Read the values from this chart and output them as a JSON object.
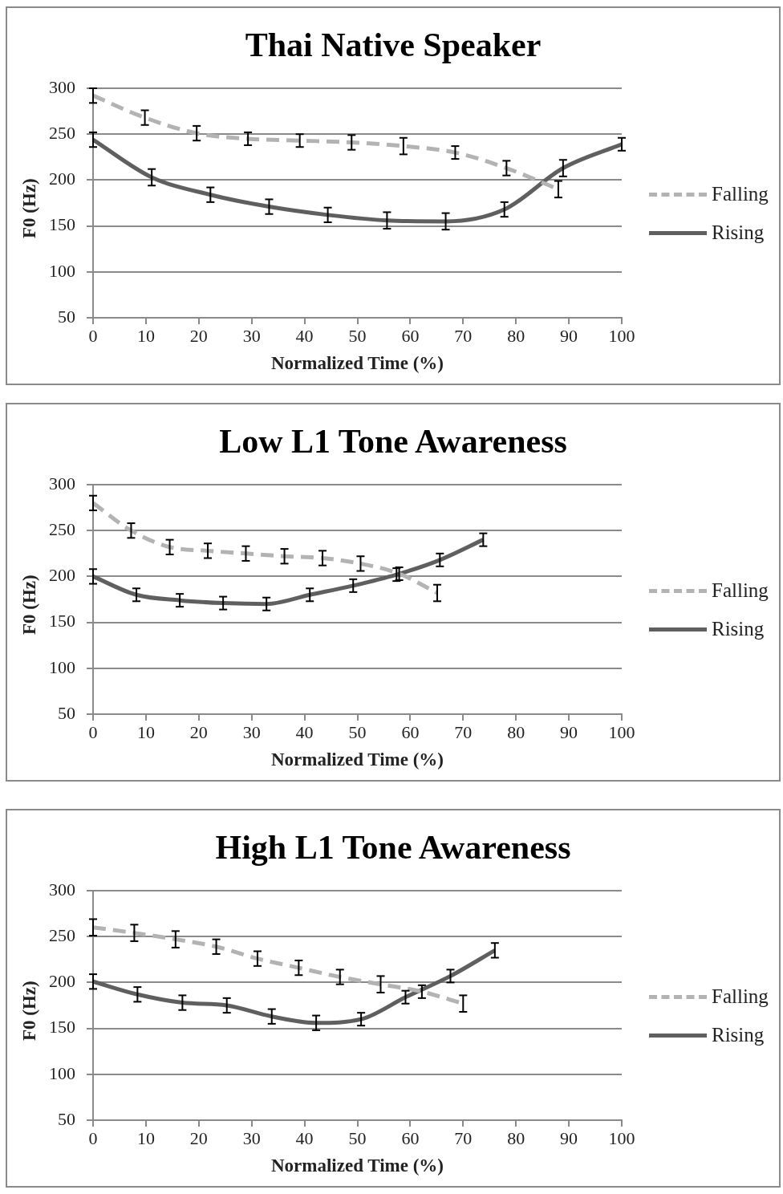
{
  "chart_data": [
    {
      "type": "line",
      "title": "Thai Native Speaker",
      "xlabel": "Normalized Time (%)",
      "ylabel": "F0 (Hz)",
      "xlim": [
        0,
        100
      ],
      "xticks": [
        0,
        10,
        20,
        30,
        40,
        50,
        60,
        70,
        80,
        90,
        100
      ],
      "ylim": [
        50,
        300
      ],
      "yticks": [
        50,
        100,
        150,
        200,
        250,
        300
      ],
      "grid": "y",
      "legend": "right",
      "series": [
        {
          "name": "Falling",
          "color": "#b3b3b3",
          "line_style": "dashed",
          "x": [
            0,
            9.8,
            19.6,
            29.3,
            39.1,
            48.9,
            58.7,
            68.5,
            78.2,
            88
          ],
          "values": [
            292,
            268,
            251,
            245,
            243,
            241,
            237,
            230,
            213,
            190
          ],
          "errors": [
            8,
            8,
            8,
            7,
            7,
            8,
            9,
            7,
            8,
            9
          ]
        },
        {
          "name": "Rising",
          "color": "#5f5f5f",
          "line_style": "solid",
          "x": [
            0,
            11.1,
            22.2,
            33.3,
            44.4,
            55.6,
            66.7,
            77.8,
            88.9,
            100
          ],
          "values": [
            244,
            203,
            184,
            171,
            162,
            156,
            155,
            168,
            213,
            239
          ],
          "errors": [
            8,
            9,
            8,
            8,
            8,
            9,
            9,
            8,
            9,
            7
          ]
        }
      ]
    },
    {
      "type": "line",
      "title": "Low L1 Tone Awareness",
      "xlabel": "Normalized Time (%)",
      "ylabel": "F0 (Hz)",
      "xlim": [
        0,
        100
      ],
      "xticks": [
        0,
        10,
        20,
        30,
        40,
        50,
        60,
        70,
        80,
        90,
        100
      ],
      "ylim": [
        50,
        300
      ],
      "yticks": [
        50,
        100,
        150,
        200,
        250,
        300
      ],
      "grid": "y",
      "legend": "right",
      "series": [
        {
          "name": "Falling",
          "color": "#b3b3b3",
          "line_style": "dashed",
          "x": [
            0,
            7.2,
            14.5,
            21.7,
            28.9,
            36.2,
            43.4,
            50.6,
            57.9,
            65.1
          ],
          "values": [
            280,
            250,
            232,
            228,
            225,
            222,
            220,
            214,
            203,
            182
          ],
          "errors": [
            8,
            8,
            8,
            8,
            8,
            8,
            8,
            8,
            7,
            9
          ]
        },
        {
          "name": "Rising",
          "color": "#5f5f5f",
          "line_style": "solid",
          "x": [
            0,
            8.2,
            16.4,
            24.6,
            32.8,
            41,
            49.2,
            57.4,
            65.6,
            73.8
          ],
          "values": [
            200,
            180,
            174,
            171,
            170,
            180,
            190,
            202,
            218,
            240
          ],
          "errors": [
            8,
            7,
            7,
            7,
            7,
            7,
            7,
            7,
            7,
            7
          ]
        }
      ]
    },
    {
      "type": "line",
      "title": "High L1 Tone Awareness",
      "xlabel": "Normalized Time (%)",
      "ylabel": "F0 (Hz)",
      "xlim": [
        0,
        100
      ],
      "xticks": [
        0,
        10,
        20,
        30,
        40,
        50,
        60,
        70,
        80,
        90,
        100
      ],
      "ylim": [
        50,
        300
      ],
      "yticks": [
        50,
        100,
        150,
        200,
        250,
        300
      ],
      "grid": "y",
      "legend": "right",
      "series": [
        {
          "name": "Falling",
          "color": "#b3b3b3",
          "line_style": "dashed",
          "x": [
            0,
            7.8,
            15.6,
            23.3,
            31.1,
            38.9,
            46.7,
            54.4,
            62.2,
            70
          ],
          "values": [
            260,
            254,
            247,
            239,
            226,
            216,
            206,
            198,
            190,
            177
          ],
          "errors": [
            9,
            9,
            9,
            8,
            8,
            8,
            8,
            9,
            7,
            9
          ]
        },
        {
          "name": "Rising",
          "color": "#5f5f5f",
          "line_style": "solid",
          "x": [
            0,
            8.4,
            16.9,
            25.3,
            33.8,
            42.2,
            50.7,
            59.1,
            67.6,
            76
          ],
          "values": [
            201,
            187,
            178,
            175,
            163,
            156,
            160,
            184,
            207,
            235
          ],
          "errors": [
            8,
            8,
            8,
            8,
            8,
            8,
            7,
            7,
            7,
            8
          ]
        }
      ]
    }
  ]
}
